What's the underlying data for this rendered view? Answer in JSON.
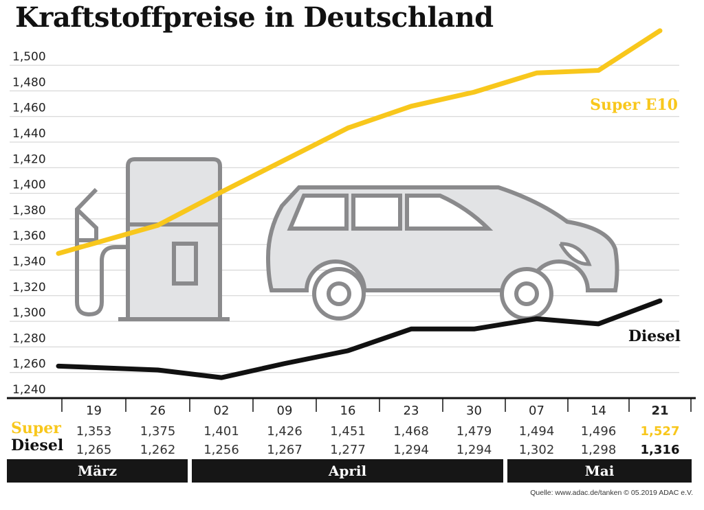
{
  "title": "Kraftstoffpreise in Deutschland",
  "source": "Quelle: www.adac.de/tanken   © 05.2019  ADAC e.V.",
  "chart_data": {
    "type": "line",
    "title": "Kraftstoffpreise in Deutschland",
    "x": [
      "19",
      "26",
      "02",
      "09",
      "16",
      "23",
      "30",
      "07",
      "14",
      "21"
    ],
    "months": [
      {
        "label": "März",
        "span": 2
      },
      {
        "label": "April",
        "span": 5
      },
      {
        "label": "Mai",
        "span": 3
      }
    ],
    "yticks": [
      "1,240",
      "1,260",
      "1,280",
      "1,300",
      "1,320",
      "1,340",
      "1,360",
      "1,380",
      "1,400",
      "1,420",
      "1,440",
      "1,460",
      "1,480",
      "1,500"
    ],
    "ylim": [
      1.24,
      1.54
    ],
    "grid": true,
    "series": [
      {
        "name": "Super E10",
        "table_label": "Super",
        "color": "#f8c71c",
        "values": [
          1.353,
          1.375,
          1.401,
          1.426,
          1.451,
          1.468,
          1.479,
          1.494,
          1.496,
          1.527
        ],
        "labels": [
          "1,353",
          "1,375",
          "1,401",
          "1,426",
          "1,451",
          "1,468",
          "1,479",
          "1,494",
          "1,496",
          "1,527"
        ]
      },
      {
        "name": "Diesel",
        "table_label": "Diesel",
        "color": "#111111",
        "values": [
          1.265,
          1.262,
          1.256,
          1.267,
          1.277,
          1.294,
          1.294,
          1.302,
          1.298,
          1.316
        ],
        "labels": [
          "1,265",
          "1,262",
          "1,256",
          "1,267",
          "1,277",
          "1,294",
          "1,294",
          "1,302",
          "1,298",
          "1,316"
        ]
      }
    ]
  }
}
